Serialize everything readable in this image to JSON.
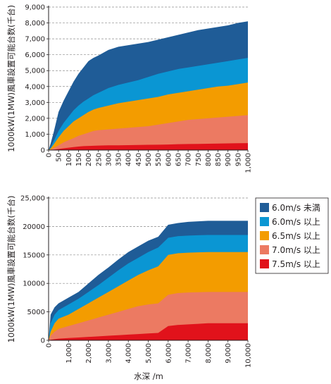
{
  "colors": {
    "navy": "#1f5c97",
    "sky": "#0a96d3",
    "orange": "#f39c00",
    "salmon": "#ec7a62",
    "red": "#e1121b",
    "axis": "#231f20",
    "grid": "#8c8c8c"
  },
  "legend": [
    {
      "label": "6.0m/s 未満",
      "color": "#1f5c97"
    },
    {
      "label": "6.0m/s 以上",
      "color": "#0a96d3"
    },
    {
      "label": "6.5m/s 以上",
      "color": "#f39c00"
    },
    {
      "label": "7.0m/s 以上",
      "color": "#ec7a62"
    },
    {
      "label": "7.5m/s 以上",
      "color": "#e1121b"
    }
  ],
  "chart_data": [
    {
      "type": "area",
      "ylabel": "1000kW(1MW)風車設置可能台数(千台)",
      "xlim": [
        0,
        1000
      ],
      "ylim": [
        0,
        9000
      ],
      "yticks": [
        0,
        1000,
        2000,
        3000,
        4000,
        5000,
        6000,
        7000,
        8000,
        9000
      ],
      "ytick_labels": [
        "0",
        "1,000",
        "2,000",
        "3,000",
        "4,000",
        "5,000",
        "6,000",
        "7,000",
        "8,000",
        "9,000"
      ],
      "xticks": [
        0,
        50,
        100,
        150,
        200,
        250,
        300,
        350,
        400,
        450,
        500,
        550,
        600,
        650,
        700,
        750,
        800,
        850,
        900,
        950,
        1000
      ],
      "xtick_labels": [
        "0",
        "50",
        "100",
        "150",
        "200",
        "250",
        "300",
        "350",
        "400",
        "450",
        "500",
        "550",
        "600",
        "650",
        "700",
        "750",
        "800",
        "850",
        "900",
        "950",
        "1,000"
      ],
      "grid": "horizontal dashed",
      "x": [
        0,
        10,
        25,
        50,
        75,
        100,
        125,
        150,
        175,
        200,
        225,
        250,
        300,
        350,
        400,
        450,
        500,
        550,
        600,
        650,
        700,
        750,
        800,
        850,
        900,
        950,
        1000
      ],
      "series": [
        {
          "name": "7.5m/s 以上",
          "values": [
            0,
            10,
            30,
            70,
            110,
            150,
            190,
            220,
            250,
            260,
            270,
            280,
            300,
            300,
            310,
            320,
            330,
            340,
            350,
            370,
            380,
            390,
            400,
            410,
            420,
            430,
            440
          ]
        },
        {
          "name": "7.0m/s 以上",
          "values": [
            0,
            40,
            120,
            300,
            480,
            620,
            750,
            900,
            1000,
            1100,
            1200,
            1250,
            1300,
            1350,
            1400,
            1450,
            1500,
            1600,
            1700,
            1800,
            1900,
            1950,
            2000,
            2050,
            2100,
            2150,
            2200
          ]
        },
        {
          "name": "6.5m/s 以上",
          "values": [
            0,
            100,
            350,
            800,
            1200,
            1500,
            1800,
            2000,
            2200,
            2400,
            2550,
            2650,
            2800,
            2950,
            3050,
            3150,
            3250,
            3350,
            3500,
            3600,
            3700,
            3800,
            3900,
            4000,
            4050,
            4150,
            4250
          ]
        },
        {
          "name": "6.0m/s 以上",
          "values": [
            0,
            150,
            550,
            1200,
            1700,
            2100,
            2500,
            2800,
            3050,
            3250,
            3450,
            3600,
            3900,
            4100,
            4250,
            4400,
            4600,
            4800,
            4950,
            5100,
            5200,
            5300,
            5400,
            5500,
            5600,
            5700,
            5800
          ]
        },
        {
          "name": "6.0m/s 未満",
          "values": [
            0,
            400,
            1100,
            2400,
            3100,
            3700,
            4300,
            4800,
            5200,
            5600,
            5800,
            5950,
            6300,
            6500,
            6600,
            6700,
            6800,
            6950,
            7100,
            7250,
            7400,
            7550,
            7650,
            7750,
            7850,
            8000,
            8100
          ]
        }
      ]
    },
    {
      "type": "area",
      "ylabel": "1000kW(1MW)風車設置可能台数(千台)",
      "xlabel": "水深 /m",
      "xlim": [
        0,
        10000
      ],
      "ylim": [
        0,
        25000
      ],
      "yticks": [
        0,
        5000,
        10000,
        15000,
        20000,
        25000
      ],
      "ytick_labels": [
        "0",
        "5000",
        "10000",
        "15000",
        "20000",
        "25,000"
      ],
      "xticks": [
        0,
        1000,
        2000,
        3000,
        4000,
        5000,
        6000,
        7000,
        8000,
        9000,
        10000
      ],
      "xtick_labels": [
        "0",
        "1,000",
        "2,000",
        "3,000",
        "4,000",
        "5,000",
        "6,000",
        "7,000",
        "8,000",
        "9,000",
        "10,000"
      ],
      "grid": "horizontal dashed",
      "x": [
        0,
        100,
        300,
        500,
        1000,
        1500,
        2000,
        2500,
        3000,
        3500,
        4000,
        4500,
        5000,
        5500,
        6000,
        6500,
        7000,
        7500,
        8000,
        9000,
        10000
      ],
      "series": [
        {
          "name": "7.5m/s 以上",
          "values": [
            0,
            100,
            200,
            300,
            400,
            500,
            600,
            700,
            800,
            900,
            1000,
            1100,
            1200,
            1300,
            2500,
            2700,
            2800,
            2900,
            3000,
            3000,
            3000
          ]
        },
        {
          "name": "7.0m/s 以上",
          "values": [
            0,
            800,
            1500,
            2000,
            2500,
            3000,
            3500,
            4000,
            4500,
            5000,
            5500,
            6000,
            6300,
            6500,
            8000,
            8300,
            8400,
            8450,
            8500,
            8500,
            8500
          ]
        },
        {
          "name": "6.5m/s 以上",
          "values": [
            0,
            1500,
            3000,
            3800,
            4500,
            5500,
            6500,
            7500,
            8500,
            9500,
            10500,
            11500,
            12300,
            13000,
            15000,
            15300,
            15400,
            15450,
            15500,
            15500,
            15500
          ]
        },
        {
          "name": "6.0m/s 以上",
          "values": [
            0,
            3000,
            4500,
            5300,
            6300,
            7300,
            8500,
            9700,
            11000,
            12300,
            13500,
            14500,
            15500,
            16300,
            18000,
            18300,
            18400,
            18450,
            18500,
            18500,
            18500
          ]
        },
        {
          "name": "6.0m/s 未満",
          "values": [
            0,
            4500,
            5800,
            6500,
            7500,
            8500,
            10000,
            11500,
            12800,
            14200,
            15500,
            16500,
            17500,
            18200,
            20300,
            20600,
            20800,
            20900,
            21000,
            21000,
            21000
          ]
        }
      ]
    }
  ]
}
